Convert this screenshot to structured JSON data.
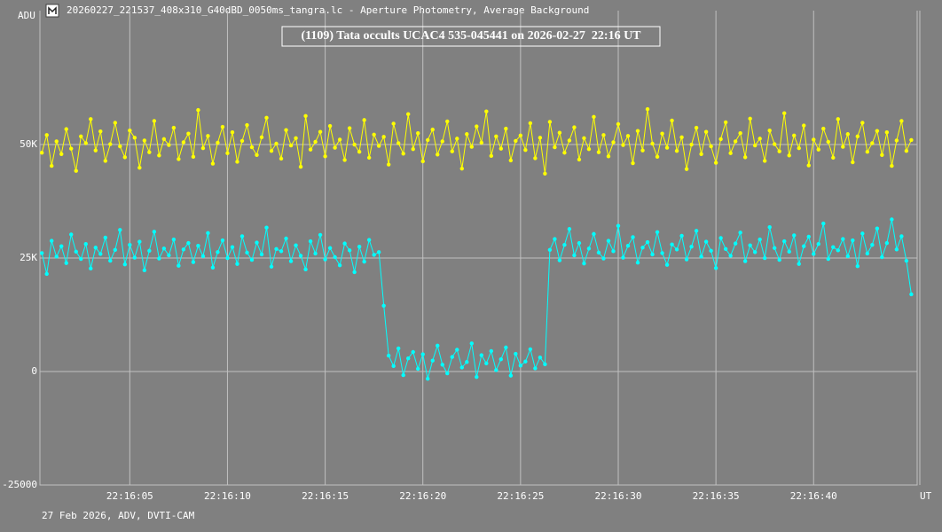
{
  "chart_data": {
    "type": "line",
    "window_title": "20260227_221537_408x310_G40dBD_0050ms_tangra.lc - Aperture Photometry, Average Background",
    "title": "(1109) Tata occults UCAC4 535-045441 on 2026-02-27  22:16 UT",
    "y_label": "ADU",
    "x_label": "UT",
    "footer": "27 Feb 2026, ADV, DVTI-CAM",
    "grid": true,
    "xlim": [
      0.4,
      45.3
    ],
    "ylim": [
      -25000,
      79500
    ],
    "xticks": [
      {
        "value": 5,
        "label": "22:16:05"
      },
      {
        "value": 10,
        "label": "22:16:10"
      },
      {
        "value": 15,
        "label": "22:16:15"
      },
      {
        "value": 20,
        "label": "22:16:20"
      },
      {
        "value": 25,
        "label": "22:16:25"
      },
      {
        "value": 30,
        "label": "22:16:30"
      },
      {
        "value": 35,
        "label": "22:16:35"
      },
      {
        "value": 40,
        "label": "22:16:40"
      }
    ],
    "yticks": [
      -25000,
      0,
      {
        "value": 25000,
        "label": "25K"
      },
      {
        "value": 50000,
        "label": "50K"
      }
    ],
    "x": [
      0.5,
      0.75,
      1,
      1.25,
      1.5,
      1.75,
      2,
      2.25,
      2.5,
      2.75,
      3,
      3.25,
      3.5,
      3.75,
      4,
      4.25,
      4.5,
      4.75,
      5,
      5.25,
      5.5,
      5.75,
      6,
      6.25,
      6.5,
      6.75,
      7,
      7.25,
      7.5,
      7.75,
      8,
      8.25,
      8.5,
      8.75,
      9,
      9.25,
      9.5,
      9.75,
      10,
      10.25,
      10.5,
      10.75,
      11,
      11.25,
      11.5,
      11.75,
      12,
      12.25,
      12.5,
      12.75,
      13,
      13.25,
      13.5,
      13.75,
      14,
      14.25,
      14.5,
      14.75,
      15,
      15.25,
      15.5,
      15.75,
      16,
      16.25,
      16.5,
      16.75,
      17,
      17.25,
      17.5,
      17.75,
      18,
      18.25,
      18.5,
      18.75,
      19,
      19.25,
      19.5,
      19.75,
      20,
      20.25,
      20.5,
      20.75,
      21,
      21.25,
      21.5,
      21.75,
      22,
      22.25,
      22.5,
      22.75,
      23,
      23.25,
      23.5,
      23.75,
      24,
      24.25,
      24.5,
      24.75,
      25,
      25.25,
      25.5,
      25.75,
      26,
      26.25,
      26.5,
      26.75,
      27,
      27.25,
      27.5,
      27.75,
      28,
      28.25,
      28.5,
      28.75,
      29,
      29.25,
      29.5,
      29.75,
      30,
      30.25,
      30.5,
      30.75,
      31,
      31.25,
      31.5,
      31.75,
      32,
      32.25,
      32.5,
      32.75,
      33,
      33.25,
      33.5,
      33.75,
      34,
      34.25,
      34.5,
      34.75,
      35,
      35.25,
      35.5,
      35.75,
      36,
      36.25,
      36.5,
      36.75,
      37,
      37.25,
      37.5,
      37.75,
      38,
      38.25,
      38.5,
      38.75,
      39,
      39.25,
      39.5,
      39.75,
      40,
      40.25,
      40.5,
      40.75,
      41,
      41.25,
      41.5,
      41.75,
      42,
      42.25,
      42.5,
      42.75,
      43,
      43.25,
      43.5,
      43.75,
      44,
      44.25,
      44.5,
      44.75,
      45
    ],
    "series": [
      {
        "color": "#ffff00",
        "values": [
          48200,
          52100,
          45300,
          50700,
          47900,
          53400,
          49100,
          44200,
          51800,
          50300,
          55600,
          48700,
          52900,
          46400,
          50100,
          54800,
          49600,
          47200,
          53100,
          51500,
          44900,
          50900,
          48300,
          55200,
          47600,
          51200,
          49900,
          53700,
          46800,
          50500,
          52400,
          47300,
          57600,
          49200,
          51900,
          45800,
          50400,
          53900,
          48100,
          52700,
          46200,
          50800,
          54300,
          49400,
          47700,
          51600,
          55900,
          48600,
          50200,
          46900,
          53200,
          49800,
          51400,
          45100,
          56300,
          48900,
          50600,
          52800,
          47400,
          54100,
          49300,
          51100,
          46600,
          53600,
          50000,
          48400,
          55400,
          47100,
          52200,
          49700,
          51700,
          45600,
          54600,
          50300,
          48000,
          56700,
          49000,
          52500,
          46300,
          51000,
          53300,
          47800,
          50700,
          55100,
          48500,
          51300,
          44700,
          52300,
          49500,
          54000,
          50400,
          57300,
          47500,
          51800,
          49100,
          53500,
          46500,
          50800,
          52000,
          48800,
          54700,
          47000,
          51500,
          43600,
          55000,
          49400,
          52600,
          48200,
          50900,
          53800,
          46700,
          51400,
          49000,
          56100,
          48300,
          52100,
          47400,
          50500,
          54500,
          49900,
          51900,
          45900,
          53000,
          48700,
          57800,
          50200,
          47300,
          52400,
          49300,
          55300,
          48600,
          51600,
          44600,
          50000,
          53700,
          47900,
          52800,
          49600,
          46000,
          51200,
          54900,
          48100,
          50700,
          52500,
          47200,
          55700,
          49800,
          51300,
          46400,
          53100,
          50100,
          48500,
          56900,
          47600,
          52000,
          49200,
          54200,
          45400,
          51100,
          48900,
          53500,
          50600,
          47100,
          55600,
          49500,
          52300,
          46100,
          51800,
          54800,
          48400,
          50300,
          53000,
          47700,
          52700,
          45300,
          50900,
          55200,
          48600,
          51000
        ]
      },
      {
        "color": "#00ffff",
        "values": [
          26100,
          21500,
          28800,
          25300,
          27600,
          23900,
          30200,
          26400,
          24800,
          28100,
          22700,
          27300,
          25900,
          29500,
          24400,
          26800,
          31200,
          23600,
          27900,
          25100,
          28600,
          22300,
          26600,
          30800,
          24900,
          27100,
          25600,
          29100,
          23300,
          26900,
          28300,
          24100,
          27700,
          25400,
          30500,
          22900,
          26300,
          28900,
          25000,
          27400,
          23700,
          29800,
          26200,
          24600,
          28400,
          25800,
          31700,
          23100,
          27000,
          26500,
          29300,
          24300,
          27800,
          25500,
          22500,
          28700,
          26000,
          30100,
          24700,
          27200,
          25200,
          23400,
          28200,
          26700,
          21900,
          27500,
          24200,
          29000,
          25700,
          26300,
          14500,
          3500,
          1200,
          5100,
          -800,
          2900,
          4300,
          600,
          3800,
          -1600,
          2400,
          5700,
          1500,
          -400,
          3200,
          4800,
          900,
          2100,
          6200,
          -1200,
          3600,
          1800,
          4500,
          300,
          2700,
          5300,
          -900,
          3900,
          1300,
          2200,
          4900,
          700,
          3100,
          1600,
          26800,
          29200,
          24500,
          27900,
          31400,
          25600,
          28300,
          23800,
          27100,
          30300,
          26200,
          24900,
          28800,
          26500,
          32100,
          25100,
          27700,
          29600,
          24000,
          27300,
          28500,
          25800,
          30700,
          26100,
          23500,
          28000,
          26900,
          29900,
          24700,
          27500,
          31000,
          25300,
          28600,
          26600,
          22800,
          29400,
          27000,
          25500,
          28200,
          30600,
          24300,
          27800,
          26300,
          29100,
          25000,
          31800,
          27200,
          24600,
          28700,
          26400,
          30000,
          23700,
          27600,
          29700,
          25900,
          28100,
          32600,
          24800,
          27400,
          26700,
          29200,
          25400,
          28900,
          23200,
          30400,
          26000,
          27900,
          31500,
          25200,
          28300,
          33500,
          26900,
          29800,
          24400,
          17000
        ]
      }
    ]
  }
}
